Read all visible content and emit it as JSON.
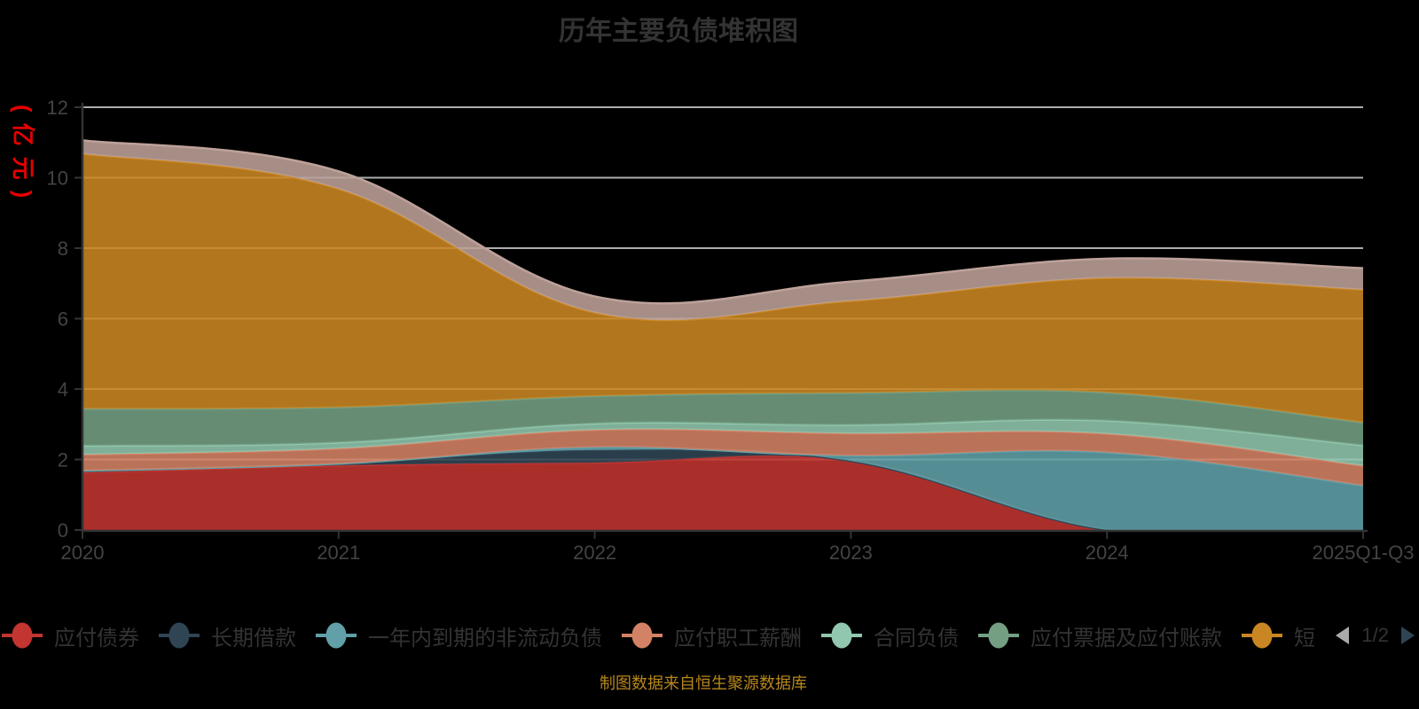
{
  "title": {
    "text": "历年主要负债堆积图"
  },
  "y_axis": {
    "name": "(亿元)",
    "name_color": "#e60000",
    "ticks": [
      0,
      2,
      4,
      6,
      8,
      10,
      12
    ],
    "max": 12
  },
  "x_axis": {
    "categories": [
      "2020",
      "2021",
      "2022",
      "2023",
      "2024",
      "2025Q1-Q3"
    ]
  },
  "legend": {
    "items": [
      {
        "label": "应付债券",
        "color": "#c23531"
      },
      {
        "label": "长期借款",
        "color": "#2f4554"
      },
      {
        "label": "一年内到期的非流动负债",
        "color": "#61a0a8"
      },
      {
        "label": "应付职工薪酬",
        "color": "#d48265"
      },
      {
        "label": "合同负债",
        "color": "#91c7ae"
      },
      {
        "label": "应付票据及应付账款",
        "color": "#749f83"
      },
      {
        "label": "短",
        "color": "#ca8622"
      }
    ],
    "pager": {
      "text": "1/2",
      "prev_color": "#aaaaaa",
      "next_color": "#2f4554"
    }
  },
  "footer": {
    "source_text": "制图数据来自恒生聚源数据库"
  },
  "chart_data": {
    "type": "area",
    "stacked": true,
    "smooth": true,
    "categories": [
      "2020",
      "2021",
      "2022",
      "2023",
      "2024",
      "2025Q1-Q3"
    ],
    "series": [
      {
        "name": "应付债券",
        "color": "#c23531",
        "values": [
          1.63,
          1.83,
          1.91,
          1.96,
          0,
          0
        ]
      },
      {
        "name": "长期借款",
        "color": "#2f4554",
        "values": [
          0.05,
          0.05,
          0.36,
          0,
          0,
          0
        ]
      },
      {
        "name": "一年内到期的非流动负债",
        "color": "#61a0a8",
        "values": [
          0,
          0,
          0.08,
          0.15,
          2.2,
          1.26
        ]
      },
      {
        "name": "应付职工薪酬",
        "color": "#d48265",
        "values": [
          0.46,
          0.43,
          0.49,
          0.63,
          0.53,
          0.56
        ]
      },
      {
        "name": "合同负债",
        "color": "#91c7ae",
        "values": [
          0.25,
          0.17,
          0.18,
          0.24,
          0.37,
          0.58
        ]
      },
      {
        "name": "应付票据及应付账款",
        "color": "#749f83",
        "values": [
          1.05,
          1.0,
          0.78,
          0.91,
          0.8,
          0.65
        ]
      },
      {
        "name": "短",
        "color": "#ca8622",
        "values": [
          7.24,
          6.2,
          2.37,
          2.61,
          3.25,
          3.77
        ]
      },
      {
        "name": "",
        "color": "#bda29a",
        "values": [
          0.38,
          0.5,
          0.46,
          0.55,
          0.55,
          0.61
        ]
      }
    ],
    "title": "历年主要负债堆积图",
    "xlabel": "",
    "ylabel": "(亿元)",
    "ylim": [
      0,
      12
    ],
    "ytick_interval": 2,
    "grid": true,
    "legend_position": "bottom",
    "source_note": "制图数据来自恒生聚源数据库"
  }
}
